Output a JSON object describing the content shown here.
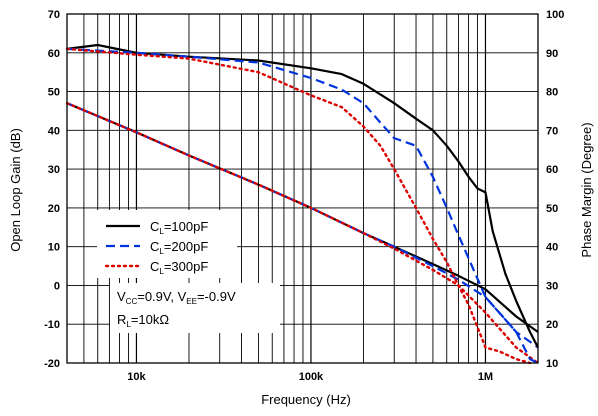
{
  "chart_data": {
    "type": "line",
    "xlabel": "Frequency (Hz)",
    "ylabel_left": "Open Loop Gain (dB)",
    "ylabel_right": "Phase Margin (Degree)",
    "x_scale": "log",
    "xlim": [
      4000,
      2000000
    ],
    "ylim_left": [
      -20,
      70
    ],
    "ylim_right": [
      10,
      100
    ],
    "x_ticks": [
      {
        "value": 10000,
        "label": "10k"
      },
      {
        "value": 100000,
        "label": "100k"
      },
      {
        "value": 1000000,
        "label": "1M"
      }
    ],
    "y_ticks_left": [
      "-20",
      "-10",
      "0",
      "10",
      "20",
      "30",
      "40",
      "50",
      "60",
      "70"
    ],
    "y_ticks_right": [
      "10",
      "20",
      "30",
      "40",
      "50",
      "60",
      "70",
      "80",
      "90",
      "100"
    ],
    "grid": true,
    "legend": {
      "position": "lower-left",
      "entries": [
        {
          "prefix": "C",
          "sub": "L",
          "suffix": "=100pF",
          "color": "#000000",
          "dash": "solid"
        },
        {
          "prefix": "C",
          "sub": "L",
          "suffix": "=200pF",
          "color": "#0033dd",
          "dash": "dashed"
        },
        {
          "prefix": "C",
          "sub": "L",
          "suffix": "=300pF",
          "color": "#dd0000",
          "dash": "dotted"
        }
      ]
    },
    "conditions": {
      "line1": {
        "a": "V",
        "a_sub": "CC",
        "b": "=0.9V, V",
        "b_sub": "EE",
        "c": "=-0.9V"
      },
      "line2": {
        "a": "R",
        "a_sub": "L",
        "b": "=10kΩ"
      }
    },
    "series": [
      {
        "name": "CL=100pF gain",
        "axis": "left",
        "color": "#000000",
        "dash": "solid",
        "x": [
          4000,
          10000,
          20000,
          50000,
          100000,
          200000,
          300000,
          500000,
          700000,
          1000000,
          1500000,
          2000000
        ],
        "y": [
          47,
          39.5,
          33.5,
          26,
          20,
          13.5,
          10,
          5.5,
          2.5,
          -1,
          -8,
          -12
        ]
      },
      {
        "name": "CL=200pF gain",
        "axis": "left",
        "color": "#0033dd",
        "dash": "dashed",
        "x": [
          4000,
          10000,
          20000,
          50000,
          100000,
          200000,
          300000,
          500000,
          700000,
          1000000,
          1500000,
          2000000
        ],
        "y": [
          47,
          39.5,
          33.5,
          26,
          20,
          13.5,
          10,
          5,
          1.5,
          -3,
          -12,
          -16
        ]
      },
      {
        "name": "CL=300pF gain",
        "axis": "left",
        "color": "#dd0000",
        "dash": "dotted",
        "x": [
          4000,
          10000,
          20000,
          50000,
          100000,
          200000,
          300000,
          500000,
          700000,
          1000000,
          1500000,
          2000000
        ],
        "y": [
          47,
          39.5,
          33.5,
          26,
          20,
          13.5,
          9.5,
          4,
          0,
          -7,
          -16,
          -20
        ]
      },
      {
        "name": "CL=100pF phase",
        "axis": "right",
        "color": "#000000",
        "dash": "solid",
        "x": [
          4000,
          6000,
          10000,
          20000,
          50000,
          100000,
          150000,
          200000,
          300000,
          400000,
          500000,
          600000,
          700000,
          800000,
          900000,
          1000000,
          1100000,
          1300000,
          1500000,
          1800000,
          2000000
        ],
        "y": [
          91,
          92,
          90,
          89,
          88,
          86,
          84.5,
          82,
          77,
          73,
          70,
          66,
          62,
          58,
          55,
          54,
          44,
          33,
          26,
          18,
          14
        ]
      },
      {
        "name": "CL=200pF phase",
        "axis": "right",
        "color": "#0033dd",
        "dash": "dashed",
        "x": [
          4000,
          10000,
          20000,
          50000,
          100000,
          150000,
          200000,
          250000,
          300000,
          400000,
          500000,
          600000,
          700000,
          800000,
          1000000,
          1200000,
          1500000,
          1800000,
          2000000
        ],
        "y": [
          91,
          90,
          89,
          87.5,
          83.5,
          80.5,
          77,
          72,
          68,
          66,
          58,
          50,
          43,
          37,
          27,
          23,
          18,
          11,
          10
        ]
      },
      {
        "name": "CL=300pF phase",
        "axis": "right",
        "color": "#dd0000",
        "dash": "dotted",
        "x": [
          4000,
          10000,
          20000,
          50000,
          100000,
          150000,
          200000,
          250000,
          300000,
          400000,
          500000,
          600000,
          700000,
          800000,
          1000000,
          1200000,
          1500000,
          1800000
        ],
        "y": [
          91,
          89.5,
          88.5,
          85,
          79,
          76,
          71,
          66,
          60,
          50,
          42,
          36,
          30,
          25,
          14,
          13,
          11,
          10
        ]
      }
    ]
  }
}
